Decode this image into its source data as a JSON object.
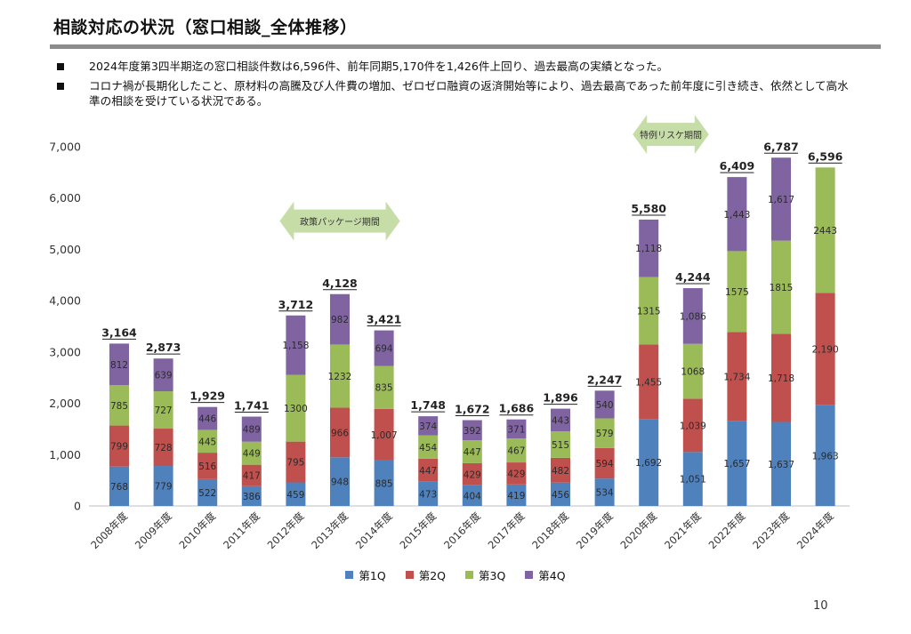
{
  "header": {
    "title": "相談対応の状況（窓口相談_全体推移）"
  },
  "bullets": [
    "2024年度第3四半期迄の窓口相談件数は6,596件、前年同期5,170件を1,426件上回り、過去最高の実績となった。",
    "コロナ禍が長期化したこと、原材料の高騰及び人件費の増加、ゼロゼロ融資の返済開始等により、過去最高であった前年度に引き続き、依然として高水準の相談を受けている状況である。"
  ],
  "chart_data": {
    "type": "bar",
    "stacked": true,
    "title": "",
    "xlabel": "",
    "ylabel": "",
    "ylim": [
      0,
      7000
    ],
    "yticks": [
      "0",
      "1,000",
      "2,000",
      "3,000",
      "4,000",
      "5,000",
      "6,000",
      "7,000"
    ],
    "categories": [
      "2008年度",
      "2009年度",
      "2010年度",
      "2011年度",
      "2012年度",
      "2013年度",
      "2014年度",
      "2015年度",
      "2016年度",
      "2017年度",
      "2018年度",
      "2019年度",
      "2020年度",
      "2021年度",
      "2022年度",
      "2023年度",
      "2024年度"
    ],
    "series": [
      {
        "name": "第1Q",
        "color": "#4F81BD",
        "values": [
          768,
          779,
          522,
          386,
          459,
          948,
          885,
          473,
          404,
          419,
          456,
          534,
          1692,
          1051,
          1657,
          1637,
          1963
        ],
        "labels": [
          "768",
          "779",
          "522",
          "386",
          "459",
          "948",
          "885",
          "473",
          "404",
          "419",
          "456",
          "534",
          "1,692",
          "1,051",
          "1,657",
          "1,637",
          "1,963"
        ]
      },
      {
        "name": "第2Q",
        "color": "#C0504D",
        "values": [
          799,
          728,
          516,
          417,
          795,
          966,
          1007,
          447,
          429,
          429,
          482,
          594,
          1455,
          1039,
          1734,
          1718,
          2190
        ],
        "labels": [
          "799",
          "728",
          "516",
          "417",
          "795",
          "966",
          "1,007",
          "447",
          "429",
          "429",
          "482",
          "594",
          "1,455",
          "1,039",
          "1,734",
          "1,718",
          "2,190"
        ]
      },
      {
        "name": "第3Q",
        "color": "#9BBB59",
        "values": [
          785,
          727,
          445,
          449,
          1300,
          1232,
          835,
          454,
          447,
          467,
          515,
          579,
          1315,
          1068,
          1575,
          1815,
          2443
        ],
        "labels": [
          "785",
          "727",
          "445",
          "449",
          "1300",
          "1232",
          "835",
          "454",
          "447",
          "467",
          "515",
          "579",
          "1315",
          "1068",
          "1575",
          "1815",
          "2443"
        ]
      },
      {
        "name": "第4Q",
        "color": "#8064A2",
        "values": [
          812,
          639,
          446,
          489,
          1158,
          982,
          694,
          374,
          392,
          371,
          443,
          540,
          1118,
          1086,
          1443,
          1617,
          null
        ],
        "labels": [
          "812",
          "639",
          "446",
          "489",
          "1,158",
          "982",
          "694",
          "374",
          "392",
          "371",
          "443",
          "540",
          "1,118",
          "1,086",
          "1,443",
          "1,617",
          ""
        ]
      }
    ],
    "totals": [
      "3,164",
      "2,873",
      "1,929",
      "1,741",
      "3,712",
      "4,128",
      "3,421",
      "1,748",
      "1,672",
      "1,686",
      "1,896",
      "2,247",
      "5,580",
      "4,244",
      "6,409",
      "6,787",
      "6,596"
    ],
    "annotations": [
      {
        "text": "政策パッケージ期間",
        "from_category": "2012年度",
        "to_category": "2014年度",
        "y": 5550,
        "color": "#C6DDA8"
      },
      {
        "text": "特例リスケ期間",
        "from_category": "2020年度",
        "to_category": "2021年度",
        "y": 7240,
        "color": "#C6DDA8"
      }
    ],
    "legend_position": "bottom"
  },
  "footer": {
    "page_number": "10"
  }
}
